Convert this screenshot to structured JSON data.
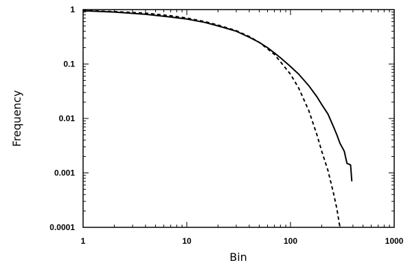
{
  "chart_data": {
    "type": "line",
    "title": "",
    "xlabel": "Bin",
    "ylabel": "Frequency",
    "xscale": "log",
    "yscale": "log",
    "xlim": [
      1,
      1000
    ],
    "ylim": [
      0.0001,
      1
    ],
    "grid": false,
    "legend": "none",
    "x_ticks": [
      {
        "value": 1,
        "label": "1"
      },
      {
        "value": 10,
        "label": "10"
      },
      {
        "value": 100,
        "label": "100"
      },
      {
        "value": 1000,
        "label": "1000"
      }
    ],
    "y_ticks": [
      {
        "value": 1,
        "label": "1"
      },
      {
        "value": 0.1,
        "label": "0.1"
      },
      {
        "value": 0.01,
        "label": "0.01"
      },
      {
        "value": 0.001,
        "label": "0.001"
      },
      {
        "value": 0.0001,
        "label": "0.0001"
      }
    ],
    "series": [
      {
        "style": "solid",
        "x": [
          1,
          2,
          4,
          7,
          10,
          15,
          20,
          30,
          40,
          50,
          60,
          70,
          80,
          100,
          120,
          150,
          180,
          200,
          230,
          260,
          280,
          300,
          330,
          350,
          380,
          390
        ],
        "y": [
          0.95,
          0.9,
          0.82,
          0.73,
          0.67,
          0.58,
          0.5,
          0.4,
          0.31,
          0.25,
          0.2,
          0.16,
          0.13,
          0.09,
          0.065,
          0.04,
          0.025,
          0.018,
          0.012,
          0.007,
          0.005,
          0.0035,
          0.0025,
          0.0015,
          0.0014,
          0.0007
        ]
      },
      {
        "style": "dashed",
        "x": [
          1,
          2,
          4,
          7,
          10,
          15,
          20,
          30,
          40,
          50,
          60,
          70,
          80,
          100,
          120,
          150,
          180,
          200,
          230,
          260,
          280,
          300
        ],
        "y": [
          0.96,
          0.92,
          0.86,
          0.77,
          0.7,
          0.6,
          0.52,
          0.41,
          0.32,
          0.25,
          0.19,
          0.15,
          0.11,
          0.065,
          0.036,
          0.014,
          0.005,
          0.0025,
          0.0011,
          0.00042,
          0.00022,
          0.0001
        ]
      }
    ]
  }
}
